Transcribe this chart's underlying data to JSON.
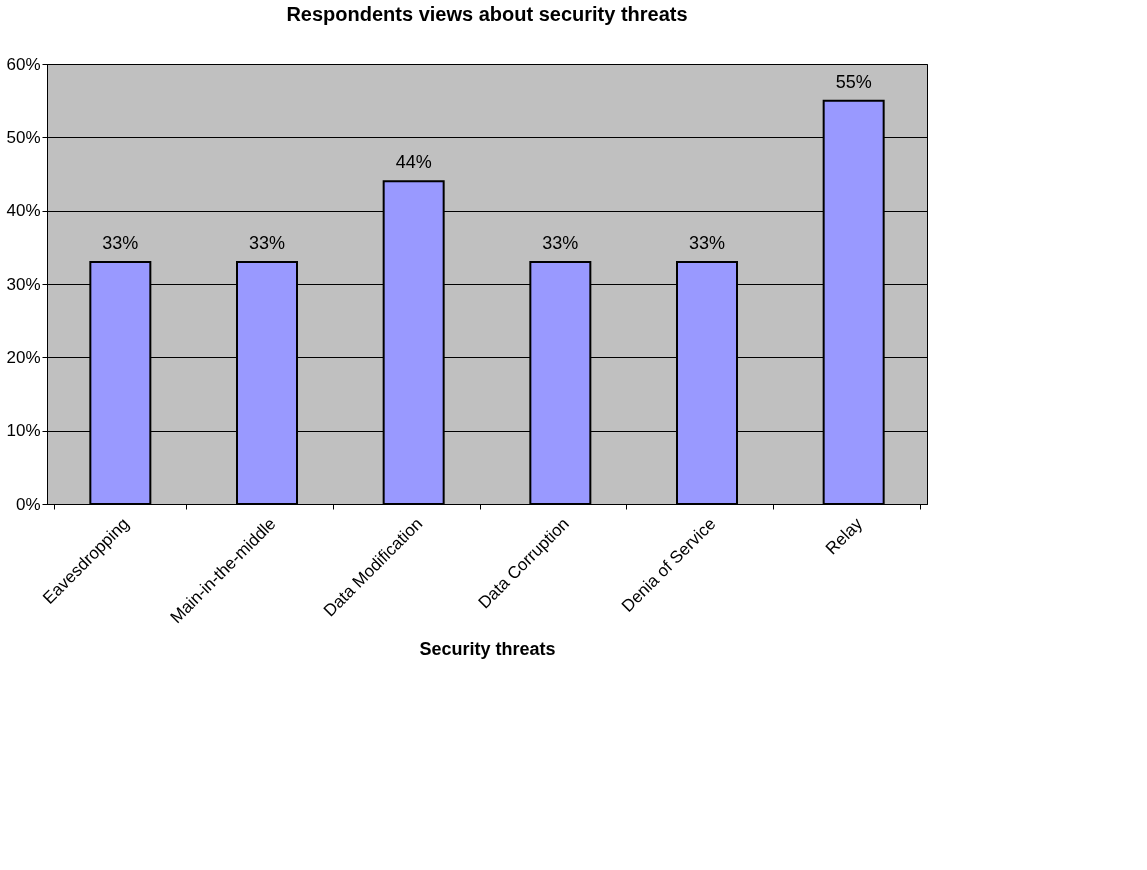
{
  "chart_data": {
    "type": "bar",
    "title": "Respondents views about security threats",
    "xlabel": "Security threats",
    "categories": [
      "Eavesdropping",
      "Main-in-the-middle",
      "Data Modification",
      "Data Corruption",
      "Denia of Service",
      "Relay"
    ],
    "values": [
      33,
      33,
      44,
      33,
      33,
      55
    ],
    "value_labels": [
      "33%",
      "33%",
      "44%",
      "33%",
      "33%",
      "55%"
    ],
    "color": "#9999ff",
    "ylim": [
      0,
      60
    ],
    "yticks": [
      {
        "value": 0,
        "label": "0%"
      },
      {
        "value": 10,
        "label": "10%"
      },
      {
        "value": 20,
        "label": "20%"
      },
      {
        "value": 30,
        "label": "30%"
      },
      {
        "value": 40,
        "label": "40%"
      },
      {
        "value": 50,
        "label": "50%"
      },
      {
        "value": 60,
        "label": "60%"
      }
    ],
    "grid": "y"
  }
}
